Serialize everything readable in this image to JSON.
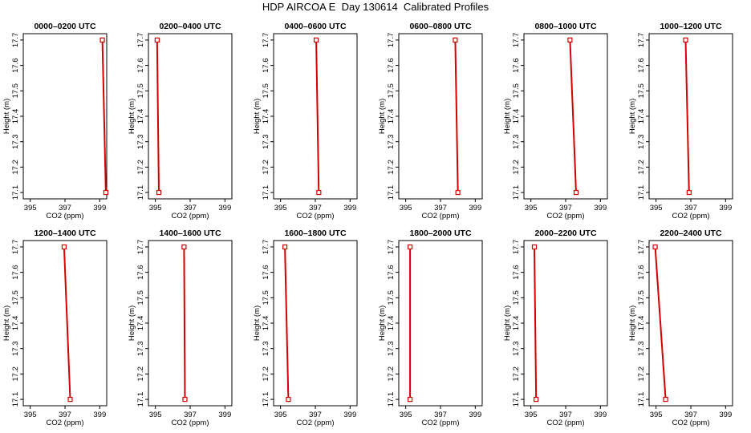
{
  "page": {
    "title": "HDP AIRCOA E  Day 130614  Calibrated Profiles"
  },
  "colors": {
    "series": "#d40000",
    "axes": "#000000"
  },
  "chart_data": [
    {
      "type": "line",
      "title": "0000–0200 UTC",
      "xlabel": "CO2 (ppm)",
      "ylabel": "Height (m)",
      "xlim": [
        394.6,
        399.4
      ],
      "ylim": [
        17.075,
        17.725
      ],
      "xticks": [
        "395",
        "397",
        "399"
      ],
      "yticks": [
        "17.1",
        "17.2",
        "17.3",
        "17.4",
        "17.5",
        "17.6",
        "17.7"
      ],
      "series": [
        {
          "x": [
            399.35,
            399.15
          ],
          "y": [
            17.1,
            17.7
          ]
        }
      ]
    },
    {
      "type": "line",
      "title": "0200–0400 UTC",
      "xlabel": "CO2 (ppm)",
      "ylabel": "Height (m)",
      "xlim": [
        394.6,
        399.4
      ],
      "ylim": [
        17.075,
        17.725
      ],
      "xticks": [
        "395",
        "397",
        "399"
      ],
      "yticks": [
        "17.1",
        "17.2",
        "17.3",
        "17.4",
        "17.5",
        "17.6",
        "17.7"
      ],
      "series": [
        {
          "x": [
            395.2,
            395.1
          ],
          "y": [
            17.1,
            17.7
          ]
        }
      ]
    },
    {
      "type": "line",
      "title": "0400–0600 UTC",
      "xlabel": "CO2 (ppm)",
      "ylabel": "Height (m)",
      "xlim": [
        394.6,
        399.4
      ],
      "ylim": [
        17.075,
        17.725
      ],
      "xticks": [
        "395",
        "397",
        "399"
      ],
      "yticks": [
        "17.1",
        "17.2",
        "17.3",
        "17.4",
        "17.5",
        "17.6",
        "17.7"
      ],
      "series": [
        {
          "x": [
            397.2,
            397.05
          ],
          "y": [
            17.1,
            17.7
          ]
        }
      ]
    },
    {
      "type": "line",
      "title": "0600–0800 UTC",
      "xlabel": "CO2 (ppm)",
      "ylabel": "Height (m)",
      "xlim": [
        394.6,
        399.4
      ],
      "ylim": [
        17.075,
        17.725
      ],
      "xticks": [
        "395",
        "397",
        "399"
      ],
      "yticks": [
        "17.1",
        "17.2",
        "17.3",
        "17.4",
        "17.5",
        "17.6",
        "17.7"
      ],
      "series": [
        {
          "x": [
            398.0,
            397.85
          ],
          "y": [
            17.1,
            17.7
          ]
        }
      ]
    },
    {
      "type": "line",
      "title": "0800–1000 UTC",
      "xlabel": "CO2 (ppm)",
      "ylabel": "Height (m)",
      "xlim": [
        394.6,
        399.4
      ],
      "ylim": [
        17.075,
        17.725
      ],
      "xticks": [
        "395",
        "397",
        "399"
      ],
      "yticks": [
        "17.1",
        "17.2",
        "17.3",
        "17.4",
        "17.5",
        "17.6",
        "17.7"
      ],
      "series": [
        {
          "x": [
            397.6,
            397.25
          ],
          "y": [
            17.1,
            17.7
          ]
        }
      ]
    },
    {
      "type": "line",
      "title": "1000–1200 UTC",
      "xlabel": "CO2 (ppm)",
      "ylabel": "Height (m)",
      "xlim": [
        394.6,
        399.4
      ],
      "ylim": [
        17.075,
        17.725
      ],
      "xticks": [
        "395",
        "397",
        "399"
      ],
      "yticks": [
        "17.1",
        "17.2",
        "17.3",
        "17.4",
        "17.5",
        "17.6",
        "17.7"
      ],
      "series": [
        {
          "x": [
            396.9,
            396.7
          ],
          "y": [
            17.1,
            17.7
          ]
        }
      ]
    },
    {
      "type": "line",
      "title": "1200–1400 UTC",
      "xlabel": "CO2 (ppm)",
      "ylabel": "Height (m)",
      "xlim": [
        394.6,
        399.4
      ],
      "ylim": [
        17.075,
        17.725
      ],
      "xticks": [
        "395",
        "397",
        "399"
      ],
      "yticks": [
        "17.1",
        "17.2",
        "17.3",
        "17.4",
        "17.5",
        "17.6",
        "17.7"
      ],
      "series": [
        {
          "x": [
            397.3,
            396.95
          ],
          "y": [
            17.1,
            17.7
          ]
        }
      ]
    },
    {
      "type": "line",
      "title": "1400–1600 UTC",
      "xlabel": "CO2 (ppm)",
      "ylabel": "Height (m)",
      "xlim": [
        394.6,
        399.4
      ],
      "ylim": [
        17.075,
        17.725
      ],
      "xticks": [
        "395",
        "397",
        "399"
      ],
      "yticks": [
        "17.1",
        "17.2",
        "17.3",
        "17.4",
        "17.5",
        "17.6",
        "17.7"
      ],
      "series": [
        {
          "x": [
            396.7,
            396.65
          ],
          "y": [
            17.1,
            17.7
          ]
        }
      ]
    },
    {
      "type": "line",
      "title": "1600–1800 UTC",
      "xlabel": "CO2 (ppm)",
      "ylabel": "Height (m)",
      "xlim": [
        394.6,
        399.4
      ],
      "ylim": [
        17.075,
        17.725
      ],
      "xticks": [
        "395",
        "397",
        "399"
      ],
      "yticks": [
        "17.1",
        "17.2",
        "17.3",
        "17.4",
        "17.5",
        "17.6",
        "17.7"
      ],
      "series": [
        {
          "x": [
            395.45,
            395.25
          ],
          "y": [
            17.1,
            17.7
          ]
        }
      ]
    },
    {
      "type": "line",
      "title": "1800–2000 UTC",
      "xlabel": "CO2 (ppm)",
      "ylabel": "Height (m)",
      "xlim": [
        394.6,
        399.4
      ],
      "ylim": [
        17.075,
        17.725
      ],
      "xticks": [
        "395",
        "397",
        "399"
      ],
      "yticks": [
        "17.1",
        "17.2",
        "17.3",
        "17.4",
        "17.5",
        "17.6",
        "17.7"
      ],
      "series": [
        {
          "x": [
            395.25,
            395.25
          ],
          "y": [
            17.1,
            17.7
          ]
        }
      ]
    },
    {
      "type": "line",
      "title": "2000–2200 UTC",
      "xlabel": "CO2 (ppm)",
      "ylabel": "Height (m)",
      "xlim": [
        394.6,
        399.4
      ],
      "ylim": [
        17.075,
        17.725
      ],
      "xticks": [
        "395",
        "397",
        "399"
      ],
      "yticks": [
        "17.1",
        "17.2",
        "17.3",
        "17.4",
        "17.5",
        "17.6",
        "17.7"
      ],
      "series": [
        {
          "x": [
            395.3,
            395.2
          ],
          "y": [
            17.1,
            17.7
          ]
        }
      ]
    },
    {
      "type": "line",
      "title": "2200–2400 UTC",
      "xlabel": "CO2 (ppm)",
      "ylabel": "Height (m)",
      "xlim": [
        394.6,
        399.4
      ],
      "ylim": [
        17.075,
        17.725
      ],
      "xticks": [
        "395",
        "397",
        "399"
      ],
      "yticks": [
        "17.1",
        "17.2",
        "17.3",
        "17.4",
        "17.5",
        "17.6",
        "17.7"
      ],
      "series": [
        {
          "x": [
            395.55,
            394.95
          ],
          "y": [
            17.1,
            17.7
          ]
        }
      ]
    }
  ]
}
